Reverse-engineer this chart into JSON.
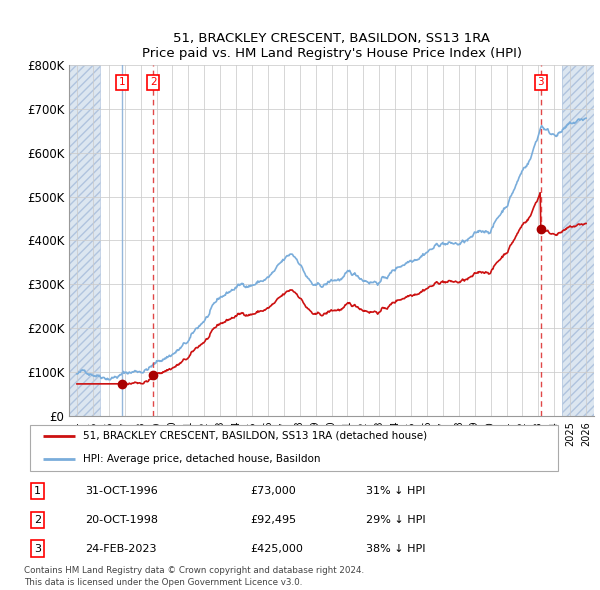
{
  "title": "51, BRACKLEY CRESCENT, BASILDON, SS13 1RA",
  "subtitle": "Price paid vs. HM Land Registry's House Price Index (HPI)",
  "ylim": [
    0,
    800000
  ],
  "yticks": [
    0,
    100000,
    200000,
    300000,
    400000,
    500000,
    600000,
    700000,
    800000
  ],
  "ytick_labels": [
    "£0",
    "£100K",
    "£200K",
    "£300K",
    "£400K",
    "£500K",
    "£600K",
    "£700K",
    "£800K"
  ],
  "hpi_color": "#7aaddb",
  "price_color": "#cc1111",
  "sale_marker_color": "#aa0000",
  "vline_color_dashed": "#dd3333",
  "vline_color_solid": "#8ab0d8",
  "hatch_face_color": "#dce6f0",
  "hatch_edge_color": "#b0c4de",
  "grid_color": "#cccccc",
  "sales": [
    {
      "date_x": 1996.83,
      "price": 73000,
      "label": "1",
      "vline_style": "solid_blue"
    },
    {
      "date_x": 1998.79,
      "price": 92495,
      "label": "2",
      "vline_style": "dashed_red"
    },
    {
      "date_x": 2023.15,
      "price": 425000,
      "label": "3",
      "vline_style": "dashed_red"
    }
  ],
  "legend_entries": [
    "51, BRACKLEY CRESCENT, BASILDON, SS13 1RA (detached house)",
    "HPI: Average price, detached house, Basildon"
  ],
  "table_rows": [
    [
      "1",
      "31-OCT-1996",
      "£73,000",
      "31% ↓ HPI"
    ],
    [
      "2",
      "20-OCT-1998",
      "£92,495",
      "29% ↓ HPI"
    ],
    [
      "3",
      "24-FEB-2023",
      "£425,000",
      "38% ↓ HPI"
    ]
  ],
  "footnote": "Contains HM Land Registry data © Crown copyright and database right 2024.\nThis data is licensed under the Open Government Licence v3.0.",
  "xlim_left": 1993.5,
  "xlim_right": 2026.5,
  "hatch_left_end": 1995.42,
  "hatch_right_start": 2024.5
}
